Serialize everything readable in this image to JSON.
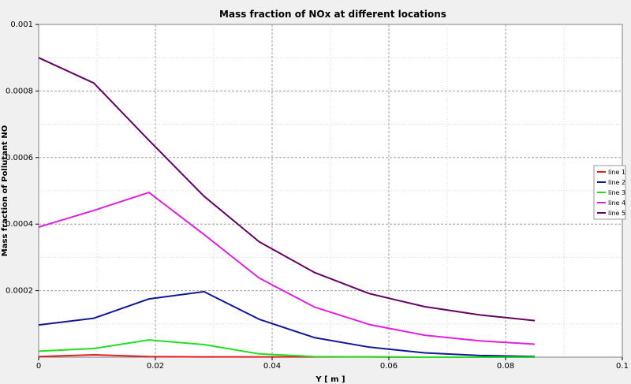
{
  "chart_data": {
    "type": "line",
    "title": "Mass fraction of NOx at different locations",
    "xlabel": "Y [ m ]",
    "ylabel": "Mass fraction of Pollutant NO",
    "xlim": [
      0,
      0.1
    ],
    "ylim": [
      0,
      0.001
    ],
    "grid": true,
    "legend_position": "right",
    "x_ticks": [
      0,
      0.02,
      0.04,
      0.06,
      0.08,
      0.1
    ],
    "x_tick_labels": [
      "0",
      "0.02",
      "0.04",
      "0.06",
      "0.08",
      "0.1"
    ],
    "y_ticks": [
      0.0002,
      0.0004,
      0.0006,
      0.0008,
      0.001
    ],
    "y_tick_labels": [
      "0.0002",
      "0.0004",
      "0.0006",
      "0.0008",
      "0.001"
    ],
    "x": [
      0,
      0.00944,
      0.01889,
      0.02833,
      0.03778,
      0.04722,
      0.05667,
      0.06611,
      0.07556,
      0.085
    ],
    "series": [
      {
        "name": "line 1",
        "color": "#e02020",
        "values": [
          2e-06,
          7e-06,
          2e-06,
          1e-06,
          1e-06,
          1e-06,
          1e-06,
          0.0,
          0.0,
          0.0
        ]
      },
      {
        "name": "line 2",
        "color": "#101896",
        "values": [
          9.7e-05,
          0.000117,
          0.000175,
          0.000197,
          0.000114,
          5.9e-05,
          3e-05,
          1.3e-05,
          5e-06,
          2e-06
        ]
      },
      {
        "name": "line 3",
        "color": "#22dd22",
        "values": [
          1.8e-05,
          2.6e-05,
          5.2e-05,
          3.8e-05,
          1e-05,
          2e-06,
          1e-06,
          0.0,
          0.0,
          0.0
        ]
      },
      {
        "name": "line 4",
        "color": "#e020e0",
        "values": [
          0.000391,
          0.000441,
          0.000495,
          0.000369,
          0.000238,
          0.000151,
          9.8e-05,
          6.6e-05,
          4.9e-05,
          3.9e-05
        ]
      },
      {
        "name": "line 5",
        "color": "#660066",
        "values": [
          0.0009,
          0.000824,
          0.000652,
          0.000484,
          0.000347,
          0.000255,
          0.000191,
          0.000152,
          0.000127,
          0.00011
        ]
      }
    ]
  }
}
